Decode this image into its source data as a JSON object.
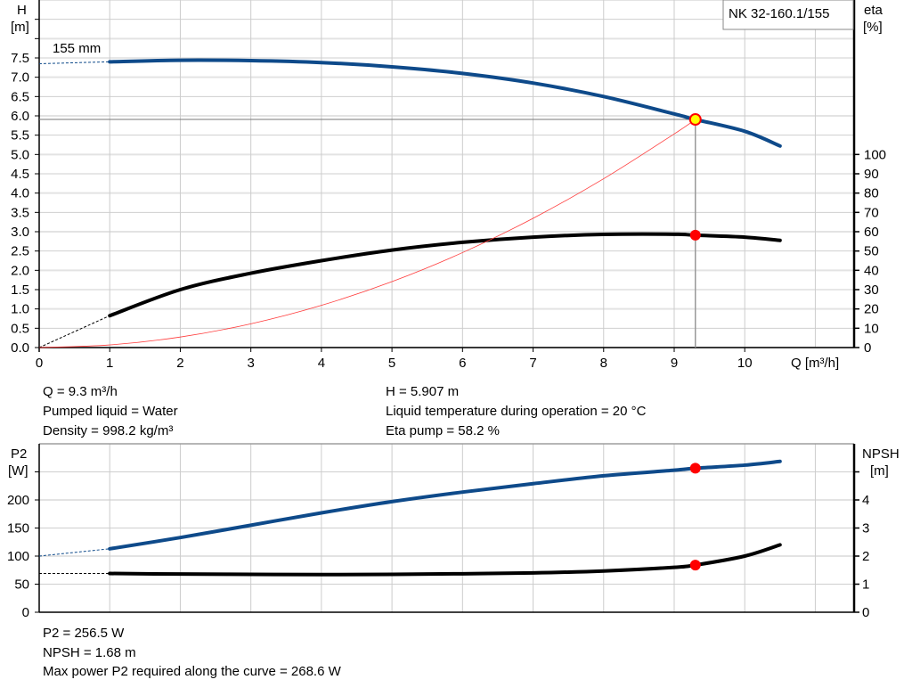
{
  "chart_data": [
    {
      "type": "line",
      "title": "NK 32-160.1/155",
      "xlabel": "Q [m³/h]",
      "ylabel_left": [
        "H",
        "[m]"
      ],
      "ylabel_right": [
        "eta",
        "[%]"
      ],
      "xlim": [
        0,
        11.55
      ],
      "ylim_left": [
        0,
        9
      ],
      "ylim_right": [
        0,
        100
      ],
      "x_ticks": [
        "0",
        "1",
        "2",
        "3",
        "4",
        "5",
        "6",
        "7",
        "8",
        "9",
        "10"
      ],
      "y_ticks_left": [
        "0.0",
        "0.5",
        "1.0",
        "1.5",
        "2.0",
        "2.5",
        "3.0",
        "3.5",
        "4.0",
        "4.5",
        "5.0",
        "5.5",
        "6.0",
        "6.5",
        "7.0",
        "7.5"
      ],
      "y_ticks_right": [
        "0",
        "10",
        "20",
        "30",
        "40",
        "50",
        "60",
        "70",
        "80",
        "90",
        "100"
      ],
      "grid": true,
      "curve_label": "155 mm",
      "series": [
        {
          "id": "head",
          "axis": "left",
          "color": "#0e4a8a",
          "x": [
            1,
            2,
            3,
            4,
            5,
            6,
            7,
            8,
            9,
            9.3,
            10,
            10.5
          ],
          "values": [
            7.4,
            7.44,
            7.43,
            7.38,
            7.27,
            7.1,
            6.85,
            6.5,
            6.05,
            5.907,
            5.6,
            5.22
          ],
          "extrapolated": {
            "x": [
              0,
              1
            ],
            "values": [
              7.35,
              7.4
            ]
          }
        },
        {
          "id": "eta",
          "axis": "right",
          "color": "#000000",
          "x": [
            1,
            2,
            3,
            4,
            5,
            6,
            7,
            8,
            9,
            9.3,
            10,
            10.5
          ],
          "values": [
            16.5,
            30,
            38.5,
            45,
            50.5,
            54.5,
            57.2,
            58.6,
            58.7,
            58.2,
            57.2,
            55.5
          ],
          "extrapolated": {
            "x": [
              0,
              1
            ],
            "values": [
              0,
              16.5
            ]
          }
        },
        {
          "id": "system",
          "axis": "left",
          "color": "#ff3b3b",
          "x": [
            0,
            1,
            2,
            3,
            4,
            5,
            6,
            7,
            8,
            9,
            9.3
          ],
          "values": [
            0,
            0.068,
            0.273,
            0.615,
            1.093,
            1.708,
            2.459,
            3.347,
            4.371,
            5.532,
            5.907
          ]
        }
      ],
      "duty_point": {
        "Q": 9.3,
        "H": 5.907,
        "eta": 58.2
      }
    },
    {
      "type": "line",
      "ylabel_left": [
        "P2",
        "[W]"
      ],
      "ylabel_right": [
        "NPSH",
        "[m]"
      ],
      "xlim": [
        0,
        11.55
      ],
      "ylim_left": [
        0,
        300
      ],
      "ylim_right": [
        0,
        6
      ],
      "y_ticks_left": [
        "0",
        "50",
        "100",
        "150",
        "200"
      ],
      "y_ticks_right": [
        "0",
        "1",
        "2",
        "3",
        "4"
      ],
      "grid": true,
      "series": [
        {
          "id": "p2",
          "axis": "left",
          "color": "#0e4a8a",
          "x": [
            1,
            2,
            3,
            4,
            5,
            6,
            7,
            8,
            9,
            9.3,
            10,
            10.5
          ],
          "values": [
            113,
            133,
            155,
            177,
            197,
            214,
            229,
            243,
            253,
            256.5,
            262,
            268.6
          ],
          "extrapolated": {
            "x": [
              0,
              1
            ],
            "values": [
              100,
              113
            ]
          }
        },
        {
          "id": "npsh",
          "axis": "right",
          "color": "#000000",
          "x": [
            1,
            2,
            3,
            4,
            5,
            6,
            7,
            8,
            9,
            9.3,
            10,
            10.5
          ],
          "values": [
            1.38,
            1.36,
            1.35,
            1.34,
            1.35,
            1.37,
            1.4,
            1.47,
            1.6,
            1.68,
            2.0,
            2.4
          ],
          "extrapolated": {
            "x": [
              0,
              1
            ],
            "values": [
              1.38,
              1.38
            ]
          }
        }
      ],
      "duty_point": {
        "Q": 9.3,
        "P2": 256.5,
        "NPSH": 1.68
      }
    }
  ],
  "info_top": {
    "left": [
      "Q = 9.3 m³/h",
      "Pumped liquid = Water",
      "Density = 998.2 kg/m³"
    ],
    "right": [
      "H = 5.907 m",
      "Liquid temperature during operation = 20 °C",
      "Eta pump = 58.2 %"
    ]
  },
  "info_bottom": [
    "P2 = 256.5 W",
    "NPSH = 1.68 m",
    "Max power P2 required along the curve = 268.6 W"
  ],
  "colors": {
    "head": "#0e4a8a",
    "eta": "#000000",
    "system": "#ff3b3b",
    "duty_marker": "#ff0000",
    "duty_fill": "#ffff00",
    "grid": "#cccccc"
  }
}
